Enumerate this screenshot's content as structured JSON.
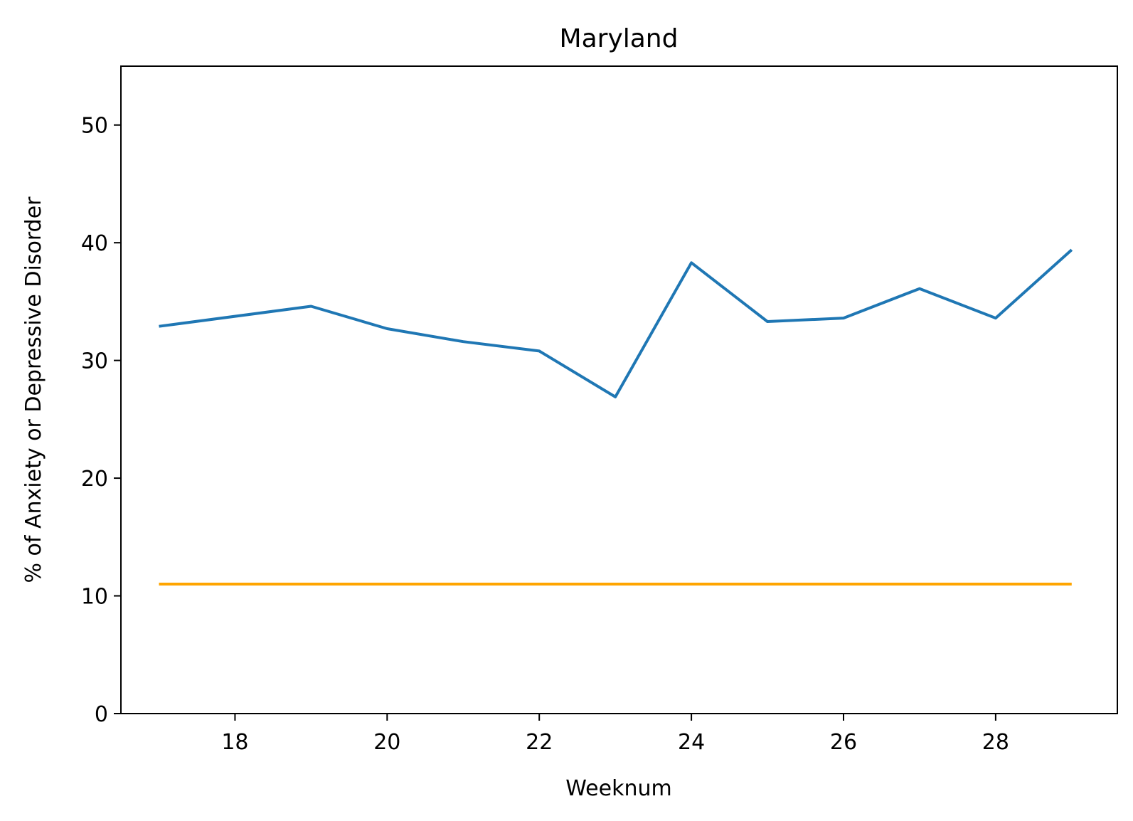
{
  "chart_data": {
    "type": "line",
    "title": "Maryland",
    "xlabel": "Weeknum",
    "ylabel": "% of Anxiety or Depressive Disorder",
    "xlim": [
      16.5,
      29.6
    ],
    "ylim": [
      0,
      55
    ],
    "x_ticks": [
      18,
      20,
      22,
      24,
      26,
      28
    ],
    "y_ticks": [
      0,
      10,
      20,
      30,
      40,
      50
    ],
    "grid": false,
    "legend": "none",
    "series": [
      {
        "color": "#1f77b4",
        "x": [
          17,
          19,
          20,
          21,
          22,
          23,
          24,
          25,
          26,
          27,
          28,
          29
        ],
        "y": [
          32.9,
          34.6,
          32.7,
          31.6,
          30.8,
          26.9,
          38.3,
          33.3,
          33.6,
          36.1,
          33.6,
          39.4
        ]
      },
      {
        "color": "#ffa500",
        "x": [
          17,
          29
        ],
        "y": [
          11,
          11
        ]
      }
    ]
  }
}
